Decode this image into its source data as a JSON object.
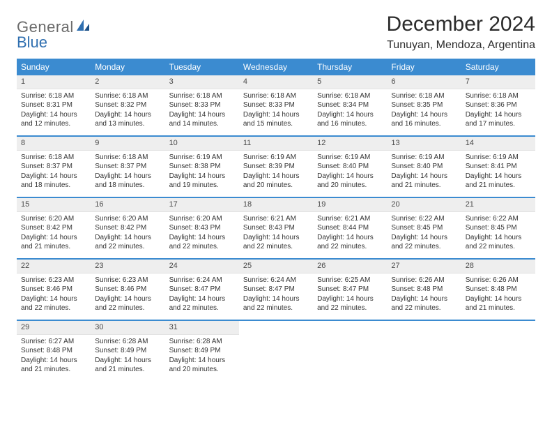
{
  "logo": {
    "text1": "General",
    "text2": "Blue"
  },
  "title": "December 2024",
  "location": "Tunuyan, Mendoza, Argentina",
  "colors": {
    "header_bg": "#3b8bd0",
    "header_text": "#ffffff",
    "daynum_bg": "#eeeeee",
    "week_divider": "#3b8bd0",
    "body_text": "#333333"
  },
  "day_names": [
    "Sunday",
    "Monday",
    "Tuesday",
    "Wednesday",
    "Thursday",
    "Friday",
    "Saturday"
  ],
  "weeks": [
    [
      {
        "n": "1",
        "sr": "6:18 AM",
        "ss": "8:31 PM",
        "dl": "14 hours and 12 minutes."
      },
      {
        "n": "2",
        "sr": "6:18 AM",
        "ss": "8:32 PM",
        "dl": "14 hours and 13 minutes."
      },
      {
        "n": "3",
        "sr": "6:18 AM",
        "ss": "8:33 PM",
        "dl": "14 hours and 14 minutes."
      },
      {
        "n": "4",
        "sr": "6:18 AM",
        "ss": "8:33 PM",
        "dl": "14 hours and 15 minutes."
      },
      {
        "n": "5",
        "sr": "6:18 AM",
        "ss": "8:34 PM",
        "dl": "14 hours and 16 minutes."
      },
      {
        "n": "6",
        "sr": "6:18 AM",
        "ss": "8:35 PM",
        "dl": "14 hours and 16 minutes."
      },
      {
        "n": "7",
        "sr": "6:18 AM",
        "ss": "8:36 PM",
        "dl": "14 hours and 17 minutes."
      }
    ],
    [
      {
        "n": "8",
        "sr": "6:18 AM",
        "ss": "8:37 PM",
        "dl": "14 hours and 18 minutes."
      },
      {
        "n": "9",
        "sr": "6:18 AM",
        "ss": "8:37 PM",
        "dl": "14 hours and 18 minutes."
      },
      {
        "n": "10",
        "sr": "6:19 AM",
        "ss": "8:38 PM",
        "dl": "14 hours and 19 minutes."
      },
      {
        "n": "11",
        "sr": "6:19 AM",
        "ss": "8:39 PM",
        "dl": "14 hours and 20 minutes."
      },
      {
        "n": "12",
        "sr": "6:19 AM",
        "ss": "8:40 PM",
        "dl": "14 hours and 20 minutes."
      },
      {
        "n": "13",
        "sr": "6:19 AM",
        "ss": "8:40 PM",
        "dl": "14 hours and 21 minutes."
      },
      {
        "n": "14",
        "sr": "6:19 AM",
        "ss": "8:41 PM",
        "dl": "14 hours and 21 minutes."
      }
    ],
    [
      {
        "n": "15",
        "sr": "6:20 AM",
        "ss": "8:42 PM",
        "dl": "14 hours and 21 minutes."
      },
      {
        "n": "16",
        "sr": "6:20 AM",
        "ss": "8:42 PM",
        "dl": "14 hours and 22 minutes."
      },
      {
        "n": "17",
        "sr": "6:20 AM",
        "ss": "8:43 PM",
        "dl": "14 hours and 22 minutes."
      },
      {
        "n": "18",
        "sr": "6:21 AM",
        "ss": "8:43 PM",
        "dl": "14 hours and 22 minutes."
      },
      {
        "n": "19",
        "sr": "6:21 AM",
        "ss": "8:44 PM",
        "dl": "14 hours and 22 minutes."
      },
      {
        "n": "20",
        "sr": "6:22 AM",
        "ss": "8:45 PM",
        "dl": "14 hours and 22 minutes."
      },
      {
        "n": "21",
        "sr": "6:22 AM",
        "ss": "8:45 PM",
        "dl": "14 hours and 22 minutes."
      }
    ],
    [
      {
        "n": "22",
        "sr": "6:23 AM",
        "ss": "8:46 PM",
        "dl": "14 hours and 22 minutes."
      },
      {
        "n": "23",
        "sr": "6:23 AM",
        "ss": "8:46 PM",
        "dl": "14 hours and 22 minutes."
      },
      {
        "n": "24",
        "sr": "6:24 AM",
        "ss": "8:47 PM",
        "dl": "14 hours and 22 minutes."
      },
      {
        "n": "25",
        "sr": "6:24 AM",
        "ss": "8:47 PM",
        "dl": "14 hours and 22 minutes."
      },
      {
        "n": "26",
        "sr": "6:25 AM",
        "ss": "8:47 PM",
        "dl": "14 hours and 22 minutes."
      },
      {
        "n": "27",
        "sr": "6:26 AM",
        "ss": "8:48 PM",
        "dl": "14 hours and 22 minutes."
      },
      {
        "n": "28",
        "sr": "6:26 AM",
        "ss": "8:48 PM",
        "dl": "14 hours and 21 minutes."
      }
    ],
    [
      {
        "n": "29",
        "sr": "6:27 AM",
        "ss": "8:48 PM",
        "dl": "14 hours and 21 minutes."
      },
      {
        "n": "30",
        "sr": "6:28 AM",
        "ss": "8:49 PM",
        "dl": "14 hours and 21 minutes."
      },
      {
        "n": "31",
        "sr": "6:28 AM",
        "ss": "8:49 PM",
        "dl": "14 hours and 20 minutes."
      },
      null,
      null,
      null,
      null
    ]
  ],
  "labels": {
    "sunrise": "Sunrise:",
    "sunset": "Sunset:",
    "daylight": "Daylight:"
  }
}
